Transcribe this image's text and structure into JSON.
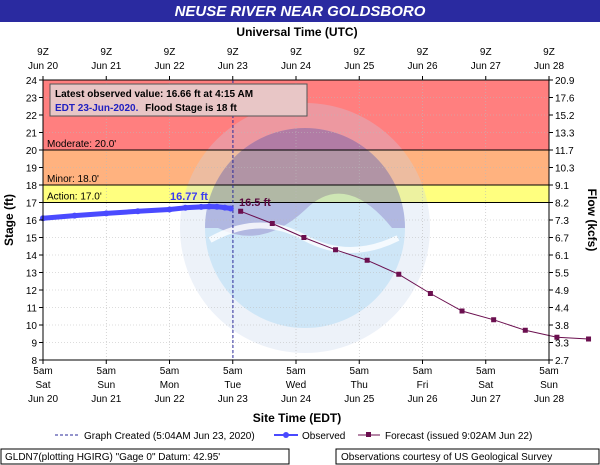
{
  "chart_data": {
    "type": "line",
    "title": "NEUSE RIVER NEAR GOLDSBORO",
    "top_axis_label": "Universal Time (UTC)",
    "bottom_axis_label": "Site Time (EDT)",
    "ylabel_left": "Stage (ft)",
    "ylabel_right": "Flow (kcfs)",
    "ylim": [
      8,
      24
    ],
    "xlim": [
      "2020-06-20T05:00",
      "2020-06-28T05:00"
    ],
    "y_ticks": [
      8,
      9,
      10,
      11,
      12,
      13,
      14,
      15,
      16,
      17,
      18,
      19,
      20,
      21,
      22,
      23,
      24
    ],
    "flow_ticks": [
      "2.7",
      "3.3",
      "3.8",
      "4.4",
      "4.9",
      "5.5",
      "6.1",
      "6.7",
      "7.3",
      "8.2",
      "9.1",
      "10.3",
      "11.7",
      "13.3",
      "15.2",
      "17.6",
      "20.9"
    ],
    "bottom_ticks": [
      {
        "time": "5am",
        "day": "Sat",
        "date": "Jun 20"
      },
      {
        "time": "5am",
        "day": "Sun",
        "date": "Jun 21"
      },
      {
        "time": "5am",
        "day": "Mon",
        "date": "Jun 22"
      },
      {
        "time": "5am",
        "day": "Tue",
        "date": "Jun 23"
      },
      {
        "time": "5am",
        "day": "Wed",
        "date": "Jun 24"
      },
      {
        "time": "5am",
        "day": "Thu",
        "date": "Jun 25"
      },
      {
        "time": "5am",
        "day": "Fri",
        "date": "Jun 26"
      },
      {
        "time": "5am",
        "day": "Sat",
        "date": "Jun 27"
      },
      {
        "time": "5am",
        "day": "Sun",
        "date": "Jun 28"
      }
    ],
    "top_ticks": [
      {
        "time": "9Z",
        "date": "Jun 20"
      },
      {
        "time": "9Z",
        "date": "Jun 21"
      },
      {
        "time": "9Z",
        "date": "Jun 22"
      },
      {
        "time": "9Z",
        "date": "Jun 23"
      },
      {
        "time": "9Z",
        "date": "Jun 24"
      },
      {
        "time": "9Z",
        "date": "Jun 25"
      },
      {
        "time": "9Z",
        "date": "Jun 26"
      },
      {
        "time": "9Z",
        "date": "Jun 27"
      },
      {
        "time": "9Z",
        "date": "Jun 28"
      }
    ],
    "flood_categories": [
      {
        "label": "Moderate: 20.0'",
        "value": 20.0,
        "color": "#ff8c00"
      },
      {
        "label": "Minor: 18.0'",
        "value": 18.0,
        "color": "#ffa500"
      },
      {
        "label": "Action: 17.0'",
        "value": 17.0,
        "color": "#ffff00"
      }
    ],
    "zone_colors": {
      "major": "#ff7f7f",
      "moderate": "#ffb27f",
      "minor": "#ffff7f",
      "normal": "#ffffff"
    },
    "latest_observed": {
      "line1": "Latest observed value: 16.66 ft at 4:15 AM",
      "line2_a": "EDT 23-Jun-2020.",
      "line2_b": "Flood Stage is 18 ft"
    },
    "annotations": {
      "peak_observed": "16.77 ft",
      "peak_forecast": "16.5 ft"
    },
    "graph_created_time": "2020-06-23T05:04",
    "series": [
      {
        "name": "Observed",
        "color": "#4a4aff",
        "points": [
          [
            "2020-06-20T05:00",
            16.1
          ],
          [
            "2020-06-20T17:00",
            16.25
          ],
          [
            "2020-06-21T05:00",
            16.38
          ],
          [
            "2020-06-21T17:00",
            16.5
          ],
          [
            "2020-06-22T05:00",
            16.6
          ],
          [
            "2020-06-22T11:00",
            16.7
          ],
          [
            "2020-06-22T17:00",
            16.75
          ],
          [
            "2020-06-22T20:00",
            16.77
          ],
          [
            "2020-06-22T23:00",
            16.76
          ],
          [
            "2020-06-23T02:00",
            16.71
          ],
          [
            "2020-06-23T04:15",
            16.66
          ]
        ]
      },
      {
        "name": "Forecast",
        "color": "#6b0f4f",
        "points": [
          [
            "2020-06-23T08:00",
            16.5
          ],
          [
            "2020-06-23T20:00",
            15.8
          ],
          [
            "2020-06-24T08:00",
            15.0
          ],
          [
            "2020-06-24T20:00",
            14.3
          ],
          [
            "2020-06-25T08:00",
            13.7
          ],
          [
            "2020-06-25T20:00",
            12.9
          ],
          [
            "2020-06-26T08:00",
            11.8
          ],
          [
            "2020-06-26T20:00",
            10.8
          ],
          [
            "2020-06-27T08:00",
            10.3
          ],
          [
            "2020-06-27T20:00",
            9.7
          ],
          [
            "2020-06-28T08:00",
            9.3
          ],
          [
            "2020-06-28T20:00",
            9.2
          ]
        ]
      }
    ],
    "legend": {
      "graph_created": "Graph Created (5:04AM Jun 23, 2020)",
      "observed": "Observed",
      "forecast": "Forecast (issued 9:02AM Jun 22)"
    },
    "footer": {
      "left": "GLDN7(plotting HGIRG) \"Gage 0\" Datum: 42.95'",
      "right": "Observations courtesy of US Geological Survey"
    }
  }
}
